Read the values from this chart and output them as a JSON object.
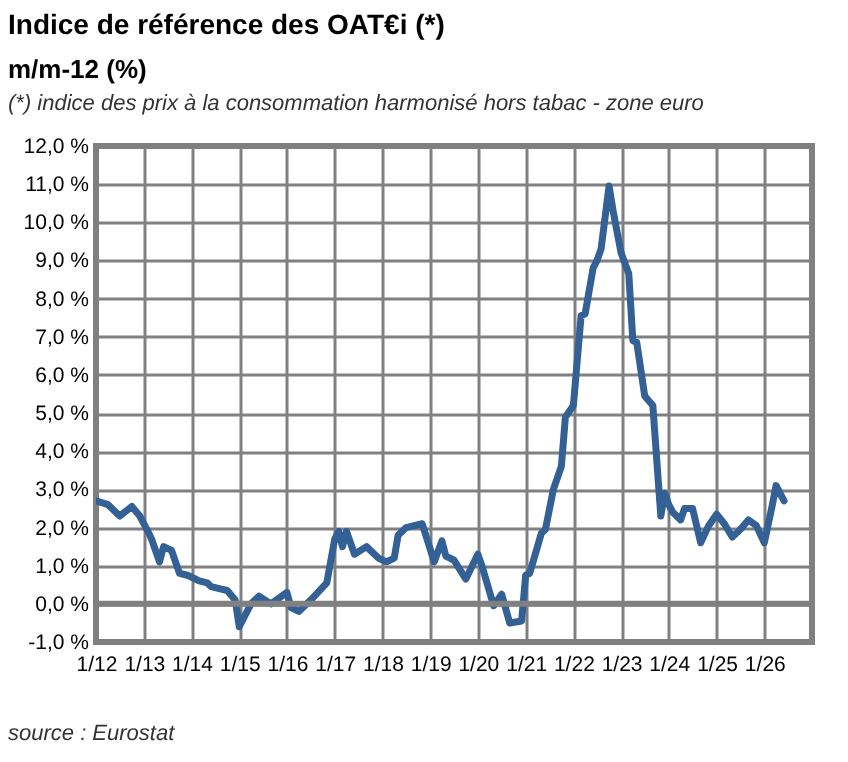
{
  "chart_data": {
    "type": "line",
    "title": "Indice de référence des OAT€i (*)",
    "subtitle": "m/m-12 (%)",
    "annotations": [
      "(*) indice des prix à la consommation harmonisé hors tabac - zone euro",
      "source : Eurostat"
    ],
    "x": [
      "2012-01",
      "2012-04",
      "2012-07",
      "2012-10",
      "2012-12",
      "2013-02",
      "2013-03",
      "2013-05",
      "2013-06",
      "2013-08",
      "2013-10",
      "2013-12",
      "2014-03",
      "2014-05",
      "2014-06",
      "2014-08",
      "2014-10",
      "2014-12",
      "2015-01",
      "2015-04",
      "2015-06",
      "2015-09",
      "2016-01",
      "2016-02",
      "2016-04",
      "2016-07",
      "2016-11",
      "2017-01",
      "2017-02",
      "2017-03",
      "2017-04",
      "2017-06",
      "2017-09",
      "2017-12",
      "2018-02",
      "2018-04",
      "2018-05",
      "2018-07",
      "2018-11",
      "2019-02",
      "2019-04",
      "2019-05",
      "2019-07",
      "2019-10",
      "2020-01",
      "2020-02",
      "2020-05",
      "2020-07",
      "2020-09",
      "2020-12",
      "2021-01",
      "2021-02",
      "2021-05",
      "2021-06",
      "2021-08",
      "2021-10",
      "2021-11",
      "2022-01",
      "2022-03",
      "2022-04",
      "2022-06",
      "2022-07",
      "2022-08",
      "2022-10",
      "2022-11",
      "2023-01",
      "2023-03",
      "2023-04",
      "2023-05",
      "2023-07",
      "2023-09",
      "2023-11",
      "2023-12",
      "2024-01",
      "2024-02",
      "2024-04",
      "2024-05",
      "2024-07",
      "2024-09",
      "2024-11",
      "2025-01",
      "2025-03",
      "2025-05",
      "2025-07",
      "2025-09",
      "2025-11",
      "2026-01",
      "2026-03",
      "2026-04",
      "2026-06"
    ],
    "series": [
      {
        "color": "#336196",
        "values": [
          2.7,
          2.6,
          2.3,
          2.55,
          2.3,
          1.9,
          1.7,
          1.1,
          1.5,
          1.4,
          0.8,
          0.75,
          0.6,
          0.55,
          0.45,
          0.4,
          0.35,
          0.1,
          -0.6,
          0.0,
          0.2,
          0.0,
          0.3,
          -0.1,
          -0.2,
          0.1,
          0.55,
          1.7,
          1.9,
          1.5,
          1.9,
          1.3,
          1.5,
          1.2,
          1.1,
          1.2,
          1.8,
          2.0,
          2.1,
          1.1,
          1.65,
          1.25,
          1.15,
          0.65,
          1.3,
          1.0,
          -0.05,
          0.25,
          -0.5,
          -0.45,
          0.75,
          0.8,
          1.85,
          1.95,
          3.0,
          3.6,
          4.9,
          5.2,
          7.55,
          7.6,
          8.8,
          9.0,
          9.3,
          10.95,
          10.3,
          9.2,
          8.65,
          6.9,
          6.85,
          5.45,
          5.2,
          2.3,
          2.9,
          2.6,
          2.4,
          2.2,
          2.5,
          2.5,
          1.6,
          2.05,
          2.35,
          2.1,
          1.75,
          1.95,
          2.2,
          2.05,
          1.6,
          2.55,
          3.1,
          2.7
        ]
      }
    ],
    "xlim": [
      "2012-01",
      "2027-01"
    ],
    "xticks": [
      {
        "value": "2012-01",
        "label": "1/12"
      },
      {
        "value": "2013-01",
        "label": "1/13"
      },
      {
        "value": "2014-01",
        "label": "1/14"
      },
      {
        "value": "2015-01",
        "label": "1/15"
      },
      {
        "value": "2016-01",
        "label": "1/16"
      },
      {
        "value": "2017-01",
        "label": "1/17"
      },
      {
        "value": "2018-01",
        "label": "1/18"
      },
      {
        "value": "2019-01",
        "label": "1/19"
      },
      {
        "value": "2020-01",
        "label": "1/20"
      },
      {
        "value": "2021-01",
        "label": "1/21"
      },
      {
        "value": "2022-01",
        "label": "1/22"
      },
      {
        "value": "2023-01",
        "label": "1/23"
      },
      {
        "value": "2024-01",
        "label": "1/24"
      },
      {
        "value": "2025-01",
        "label": "1/25"
      },
      {
        "value": "2026-01",
        "label": "1/26"
      },
      {
        "value": "2027-01",
        "label": null
      }
    ],
    "ylim": [
      -1,
      12
    ],
    "yticks": [
      {
        "value": -1,
        "label": "-1,0 %"
      },
      {
        "value": 0,
        "label": "0,0 %"
      },
      {
        "value": 1,
        "label": "1,0 %"
      },
      {
        "value": 2,
        "label": "2,0 %"
      },
      {
        "value": 3,
        "label": "3,0 %"
      },
      {
        "value": 4,
        "label": "4,0 %"
      },
      {
        "value": 5,
        "label": "5,0 %"
      },
      {
        "value": 6,
        "label": "6,0 %"
      },
      {
        "value": 7,
        "label": "7,0 %"
      },
      {
        "value": 8,
        "label": "8,0 %"
      },
      {
        "value": 9,
        "label": "9,0 %"
      },
      {
        "value": 10,
        "label": "10,0 %"
      },
      {
        "value": 11,
        "label": "11,0 %"
      },
      {
        "value": 12,
        "label": "12,0 %"
      }
    ],
    "ref_lines": [
      {
        "axis": "y",
        "value": 0,
        "color": "#808080"
      }
    ],
    "grid": true,
    "marker": "none",
    "line_style": "solid"
  }
}
